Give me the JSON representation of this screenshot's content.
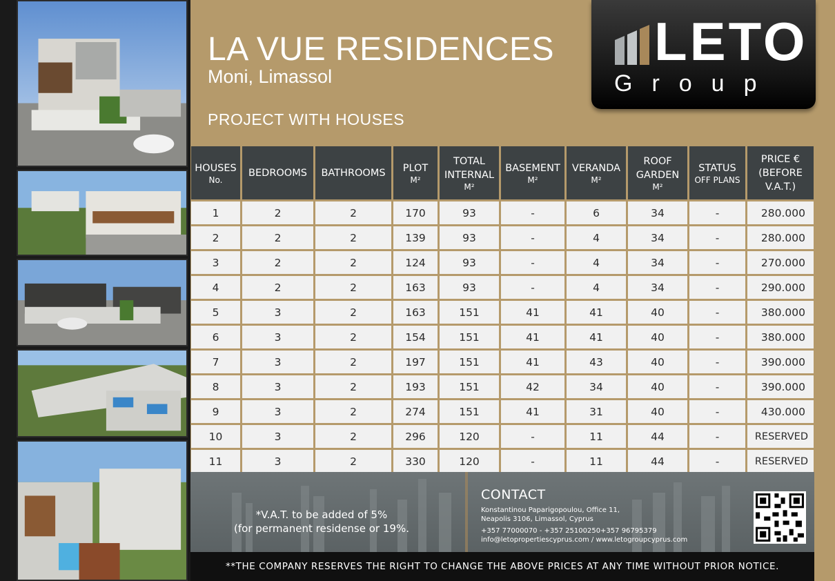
{
  "header": {
    "title": "LA VUE RESIDENCES",
    "location": "Moni, Limassol",
    "project_type": "PROJECT WITH HOUSES"
  },
  "logo": {
    "word": "LETO",
    "sub": "Group"
  },
  "colors": {
    "background": "#b59a6b",
    "header_cell": "#3d4244",
    "data_cell": "#f1f1f1",
    "logo_bg": "#141414"
  },
  "table": {
    "headers": [
      {
        "line1": "HOUSES",
        "line2": "No."
      },
      {
        "line1": "BEDROOMS",
        "line2": ""
      },
      {
        "line1": "BATHROOMS",
        "line2": ""
      },
      {
        "line1": "PLOT",
        "line2": "M²"
      },
      {
        "line1": "TOTAL INTERNAL",
        "line2": "M²"
      },
      {
        "line1": "BASEMENT",
        "line2": "M²"
      },
      {
        "line1": "VERANDA",
        "line2": "M²"
      },
      {
        "line1": "ROOF GARDEN",
        "line2": "M²"
      },
      {
        "line1": "STATUS",
        "line2": "OFF PLANS"
      },
      {
        "line1": "PRICE € (BEFORE V.A.T.)",
        "line2": ""
      }
    ],
    "rows": [
      [
        "1",
        "2",
        "2",
        "170",
        "93",
        "-",
        "6",
        "34",
        "-",
        "280.000"
      ],
      [
        "2",
        "2",
        "2",
        "139",
        "93",
        "-",
        "4",
        "34",
        "-",
        "280.000"
      ],
      [
        "3",
        "2",
        "2",
        "124",
        "93",
        "-",
        "4",
        "34",
        "-",
        "270.000"
      ],
      [
        "4",
        "2",
        "2",
        "163",
        "93",
        "-",
        "4",
        "34",
        "-",
        "290.000"
      ],
      [
        "5",
        "3",
        "2",
        "163",
        "151",
        "41",
        "41",
        "40",
        "-",
        "380.000"
      ],
      [
        "6",
        "3",
        "2",
        "154",
        "151",
        "41",
        "41",
        "40",
        "-",
        "380.000"
      ],
      [
        "7",
        "3",
        "2",
        "197",
        "151",
        "41",
        "43",
        "40",
        "-",
        "390.000"
      ],
      [
        "8",
        "3",
        "2",
        "193",
        "151",
        "42",
        "34",
        "40",
        "-",
        "390.000"
      ],
      [
        "9",
        "3",
        "2",
        "274",
        "151",
        "41",
        "31",
        "40",
        "-",
        "430.000"
      ],
      [
        "10",
        "3",
        "2",
        "296",
        "120",
        "-",
        "11",
        "44",
        "-",
        "RESERVED"
      ],
      [
        "11",
        "3",
        "2",
        "330",
        "120",
        "-",
        "11",
        "44",
        "-",
        "RESERVED"
      ]
    ]
  },
  "footer": {
    "vat_line1": "*V.A.T. to be added of 5%",
    "vat_line2": "(for permanent residense or 19%.",
    "contact_title": "CONTACT",
    "address_line1": "Konstantinou Paparigopoulou, Office 11,",
    "address_line2": "Neapolis 3106, Limassol, Cyprus",
    "phones": "+357 77000070 - +357 25100250+357 96795379",
    "emails": "info@letopropertiescyprus.com  /  www.letogroupcyprus.com",
    "notice": "**THE COMPANY RESERVES THE RIGHT TO CHANGE THE ABOVE PRICES AT ANY TIME WITHOUT PRIOR NOTICE."
  }
}
